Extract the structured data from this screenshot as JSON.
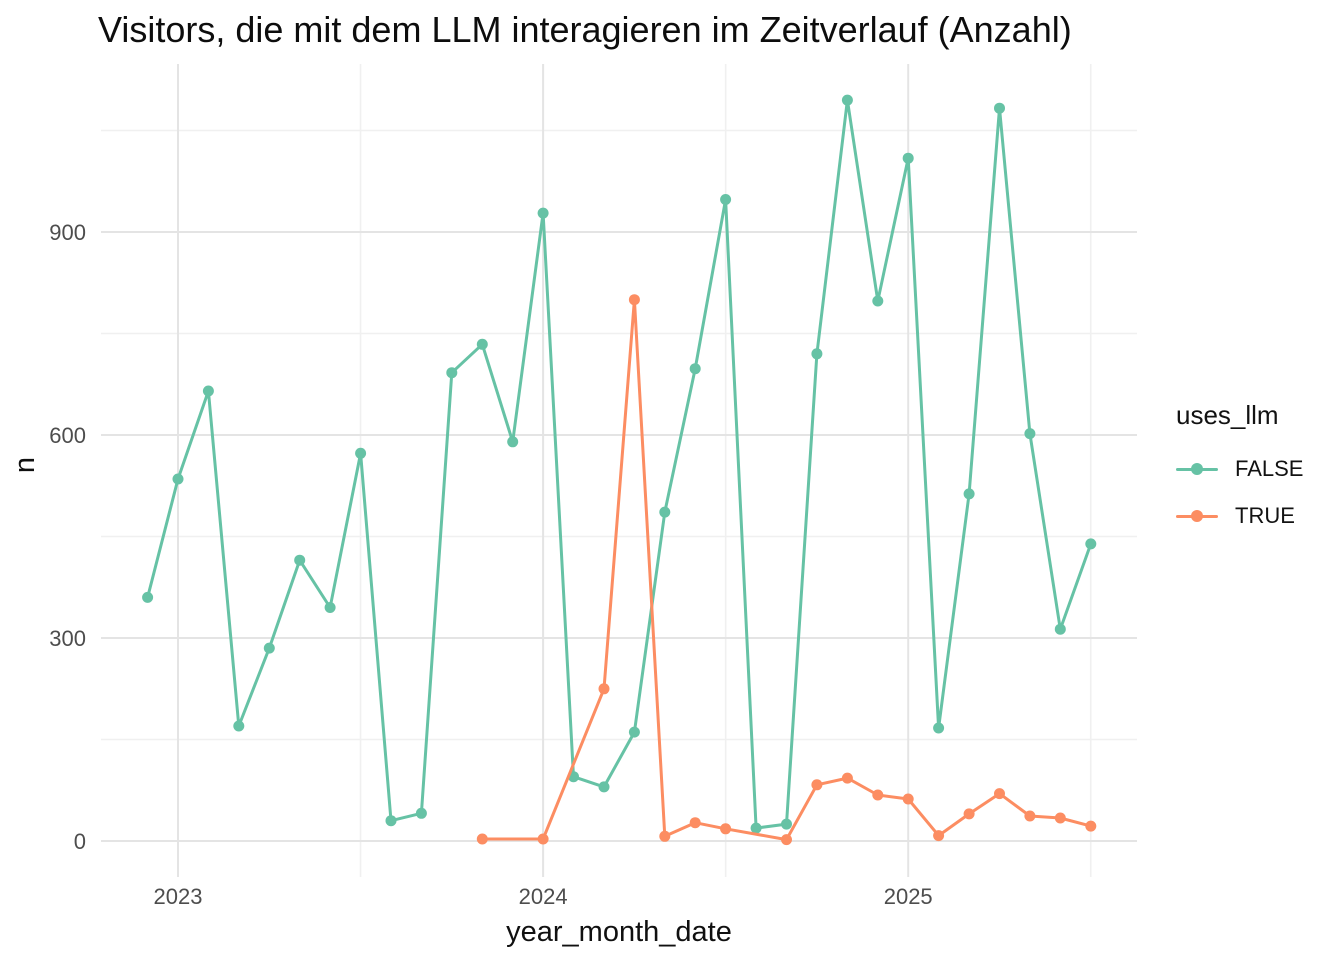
{
  "chart_data": {
    "type": "line",
    "title": "Visitors, die mit dem LLM interagieren im Zeitverlauf (Anzahl)",
    "xlabel": "year_month_date",
    "ylabel": "n",
    "grid": true,
    "legend": {
      "title": "uses_llm",
      "position": "right"
    },
    "x_axis": {
      "tick_labels": [
        "2023",
        "2024",
        "2025"
      ],
      "tick_dates": [
        "2023-01",
        "2024-01",
        "2025-01"
      ],
      "minor_dates": [
        "2023-07",
        "2024-07",
        "2025-07"
      ],
      "range": [
        "2022-11",
        "2025-08"
      ]
    },
    "y_axis": {
      "ticks": [
        0,
        300,
        600,
        900
      ],
      "minor_ticks": [
        150,
        450,
        750,
        1050
      ],
      "range": [
        -55,
        1150
      ]
    },
    "series": [
      {
        "name": "FALSE",
        "color": "#66C2A5",
        "points": [
          {
            "date": "2022-12",
            "n": 360
          },
          {
            "date": "2023-01",
            "n": 535
          },
          {
            "date": "2023-02",
            "n": 665
          },
          {
            "date": "2023-03",
            "n": 170
          },
          {
            "date": "2023-04",
            "n": 285
          },
          {
            "date": "2023-05",
            "n": 415
          },
          {
            "date": "2023-06",
            "n": 345
          },
          {
            "date": "2023-07",
            "n": 573
          },
          {
            "date": "2023-08",
            "n": 30
          },
          {
            "date": "2023-09",
            "n": 41
          },
          {
            "date": "2023-10",
            "n": 692
          },
          {
            "date": "2023-11",
            "n": 734
          },
          {
            "date": "2023-12",
            "n": 590
          },
          {
            "date": "2024-01",
            "n": 928
          },
          {
            "date": "2024-02",
            "n": 95
          },
          {
            "date": "2024-03",
            "n": 80
          },
          {
            "date": "2024-04",
            "n": 161
          },
          {
            "date": "2024-05",
            "n": 486
          },
          {
            "date": "2024-06",
            "n": 698
          },
          {
            "date": "2024-07",
            "n": 948
          },
          {
            "date": "2024-08",
            "n": 19
          },
          {
            "date": "2024-09",
            "n": 25
          },
          {
            "date": "2024-10",
            "n": 720
          },
          {
            "date": "2024-11",
            "n": 1095
          },
          {
            "date": "2024-12",
            "n": 798
          },
          {
            "date": "2025-01",
            "n": 1009
          },
          {
            "date": "2025-02",
            "n": 167
          },
          {
            "date": "2025-03",
            "n": 513
          },
          {
            "date": "2025-04",
            "n": 1083
          },
          {
            "date": "2025-05",
            "n": 602
          },
          {
            "date": "2025-06",
            "n": 313
          },
          {
            "date": "2025-07",
            "n": 439
          }
        ]
      },
      {
        "name": "TRUE",
        "color": "#FC8D62",
        "points": [
          {
            "date": "2023-11",
            "n": 3
          },
          {
            "date": "2024-01",
            "n": 3
          },
          {
            "date": "2024-03",
            "n": 225
          },
          {
            "date": "2024-04",
            "n": 800
          },
          {
            "date": "2024-05",
            "n": 7
          },
          {
            "date": "2024-06",
            "n": 27
          },
          {
            "date": "2024-07",
            "n": 18
          },
          {
            "date": "2024-09",
            "n": 2
          },
          {
            "date": "2024-10",
            "n": 83
          },
          {
            "date": "2024-11",
            "n": 93
          },
          {
            "date": "2024-12",
            "n": 68
          },
          {
            "date": "2025-01",
            "n": 62
          },
          {
            "date": "2025-02",
            "n": 8
          },
          {
            "date": "2025-03",
            "n": 40
          },
          {
            "date": "2025-04",
            "n": 70
          },
          {
            "date": "2025-05",
            "n": 37
          },
          {
            "date": "2025-06",
            "n": 34
          },
          {
            "date": "2025-07",
            "n": 22
          }
        ]
      }
    ]
  }
}
